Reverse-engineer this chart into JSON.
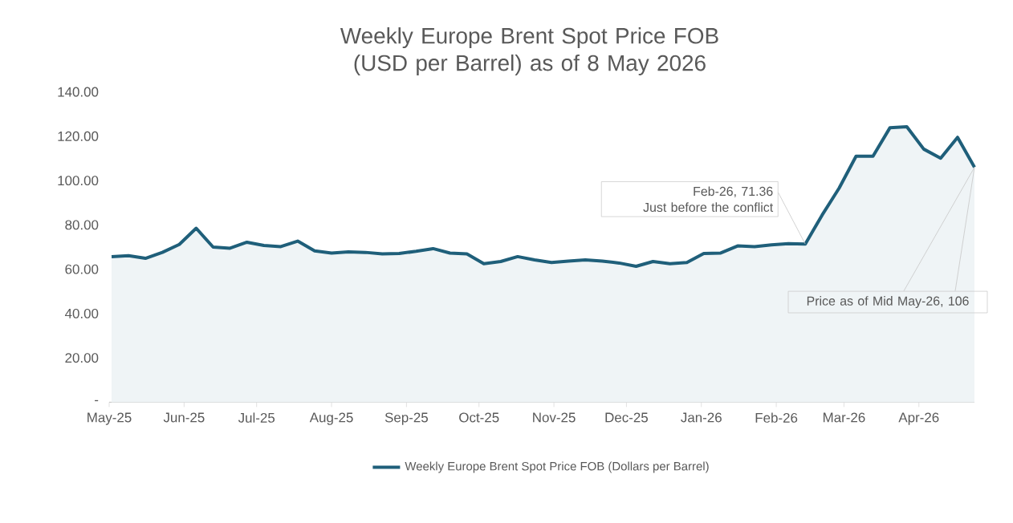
{
  "chart_data": {
    "type": "area",
    "title": "Weekly Europe Brent Spot Price FOB  (USD per Barrel) as of 8 May 2026",
    "x": [
      "2025-05-02",
      "2025-05-09",
      "2025-05-16",
      "2025-05-23",
      "2025-05-30",
      "2025-06-06",
      "2025-06-13",
      "2025-06-20",
      "2025-06-27",
      "2025-07-04",
      "2025-07-11",
      "2025-07-18",
      "2025-07-25",
      "2025-08-01",
      "2025-08-08",
      "2025-08-15",
      "2025-08-22",
      "2025-08-29",
      "2025-09-05",
      "2025-09-12",
      "2025-09-19",
      "2025-09-26",
      "2025-10-03",
      "2025-10-10",
      "2025-10-17",
      "2025-10-24",
      "2025-10-31",
      "2025-11-07",
      "2025-11-14",
      "2025-11-21",
      "2025-11-28",
      "2025-12-05",
      "2025-12-12",
      "2025-12-19",
      "2025-12-26",
      "2026-01-02",
      "2026-01-09",
      "2026-01-16",
      "2026-01-23",
      "2026-01-30",
      "2026-02-06",
      "2026-02-13",
      "2026-02-20",
      "2026-02-27",
      "2026-03-06",
      "2026-03-13",
      "2026-03-20",
      "2026-03-27",
      "2026-04-03",
      "2026-04-10",
      "2026-04-17",
      "2026-04-24"
    ],
    "series": [
      {
        "name": "Weekly Europe Brent Spot Price FOB  (Dollars per Barrel)",
        "color": "#1f5f7a",
        "values": [
          65.7,
          66.1,
          64.9,
          67.6,
          71.2,
          78.5,
          70.0,
          69.5,
          72.2,
          70.7,
          70.2,
          72.7,
          68.3,
          67.3,
          67.8,
          67.6,
          66.9,
          67.1,
          68.1,
          69.3,
          67.3,
          66.9,
          62.5,
          63.5,
          65.7,
          64.2,
          63.0,
          63.7,
          64.2,
          63.7,
          62.8,
          61.3,
          63.5,
          62.5,
          63.0,
          67.1,
          67.3,
          70.5,
          70.2,
          71.0,
          71.5,
          71.36,
          84.5,
          96.6,
          111.0,
          111.0,
          123.8,
          124.3,
          114.2,
          110.1,
          119.5,
          106
        ]
      }
    ],
    "xlim": [
      "2025-05-01",
      "2026-04-24"
    ],
    "xticks": [
      {
        "value": "2025-05-01",
        "label": "May-25"
      },
      {
        "value": "2025-06-01",
        "label": "Jun-25"
      },
      {
        "value": "2025-07-01",
        "label": "Jul-25"
      },
      {
        "value": "2025-08-01",
        "label": "Aug-25"
      },
      {
        "value": "2025-09-01",
        "label": "Sep-25"
      },
      {
        "value": "2025-10-01",
        "label": "Oct-25"
      },
      {
        "value": "2025-11-01",
        "label": "Nov-25"
      },
      {
        "value": "2025-12-01",
        "label": "Dec-25"
      },
      {
        "value": "2026-01-01",
        "label": "Jan-26"
      },
      {
        "value": "2026-02-01",
        "label": "Feb-26"
      },
      {
        "value": "2026-03-01",
        "label": "Mar-26"
      },
      {
        "value": "2026-04-01",
        "label": "Apr-26"
      }
    ],
    "ylim": [
      0,
      140
    ],
    "yticks": [
      {
        "value": 0,
        "label": "-"
      },
      {
        "value": 20,
        "label": "20.00"
      },
      {
        "value": 40,
        "label": "40.00"
      },
      {
        "value": 60,
        "label": "60.00"
      },
      {
        "value": 80,
        "label": "80.00"
      },
      {
        "value": 100,
        "label": "100.00"
      },
      {
        "value": 120,
        "label": "120.00"
      },
      {
        "value": 140,
        "label": "140.00"
      }
    ],
    "annotations": [
      {
        "text": "Feb-26,  71.36",
        "x": "2026-02-13",
        "y": 71.36
      },
      "Just before the conflict",
      {
        "text": "Price as of Mid May-26, 106",
        "x": "2026-04-24",
        "y": 106
      }
    ],
    "legend": "bottom",
    "grid": false
  }
}
